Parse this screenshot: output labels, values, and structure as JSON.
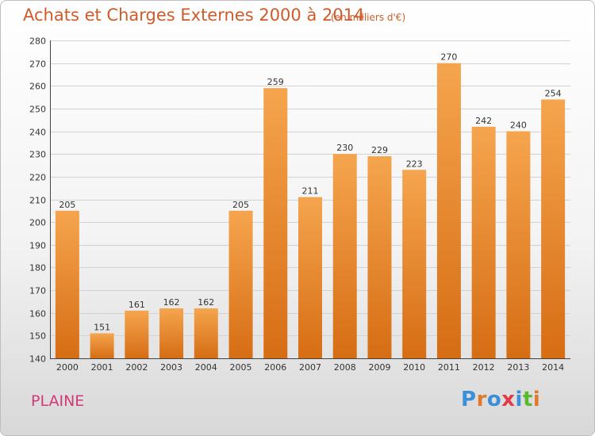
{
  "title": "Achats et Charges Externes 2000 à 2014",
  "subtitle": "(en milliers d'€)",
  "commune": "PLAINE",
  "logo": {
    "text": "Proxiti",
    "colors": [
      "#3a8fd8",
      "#e07a2a",
      "#3a8fd8",
      "#e23a4a",
      "#3a8fd8",
      "#5cb82e",
      "#e07a2a"
    ]
  },
  "colors": {
    "bar_top": "#f5a54e",
    "bar_bottom": "#d66d14",
    "grid": "#d2d2d2",
    "axis": "#444444",
    "title": "#cf5b2a",
    "commune": "#cf3a77"
  },
  "chart_data": {
    "type": "bar",
    "title": "Achats et Charges Externes 2000 à 2014",
    "subtitle": "(en milliers d'€)",
    "xlabel": "",
    "ylabel": "",
    "categories": [
      "2000",
      "2001",
      "2002",
      "2003",
      "2004",
      "2005",
      "2006",
      "2007",
      "2008",
      "2009",
      "2010",
      "2011",
      "2012",
      "2013",
      "2014"
    ],
    "values": [
      205,
      151,
      161,
      162,
      162,
      205,
      259,
      211,
      230,
      229,
      223,
      270,
      242,
      240,
      254
    ],
    "ylim": [
      140,
      280
    ],
    "yticks": [
      140,
      150,
      160,
      170,
      180,
      190,
      200,
      210,
      220,
      230,
      240,
      250,
      260,
      270,
      280
    ],
    "grid": true,
    "legend": "none"
  }
}
